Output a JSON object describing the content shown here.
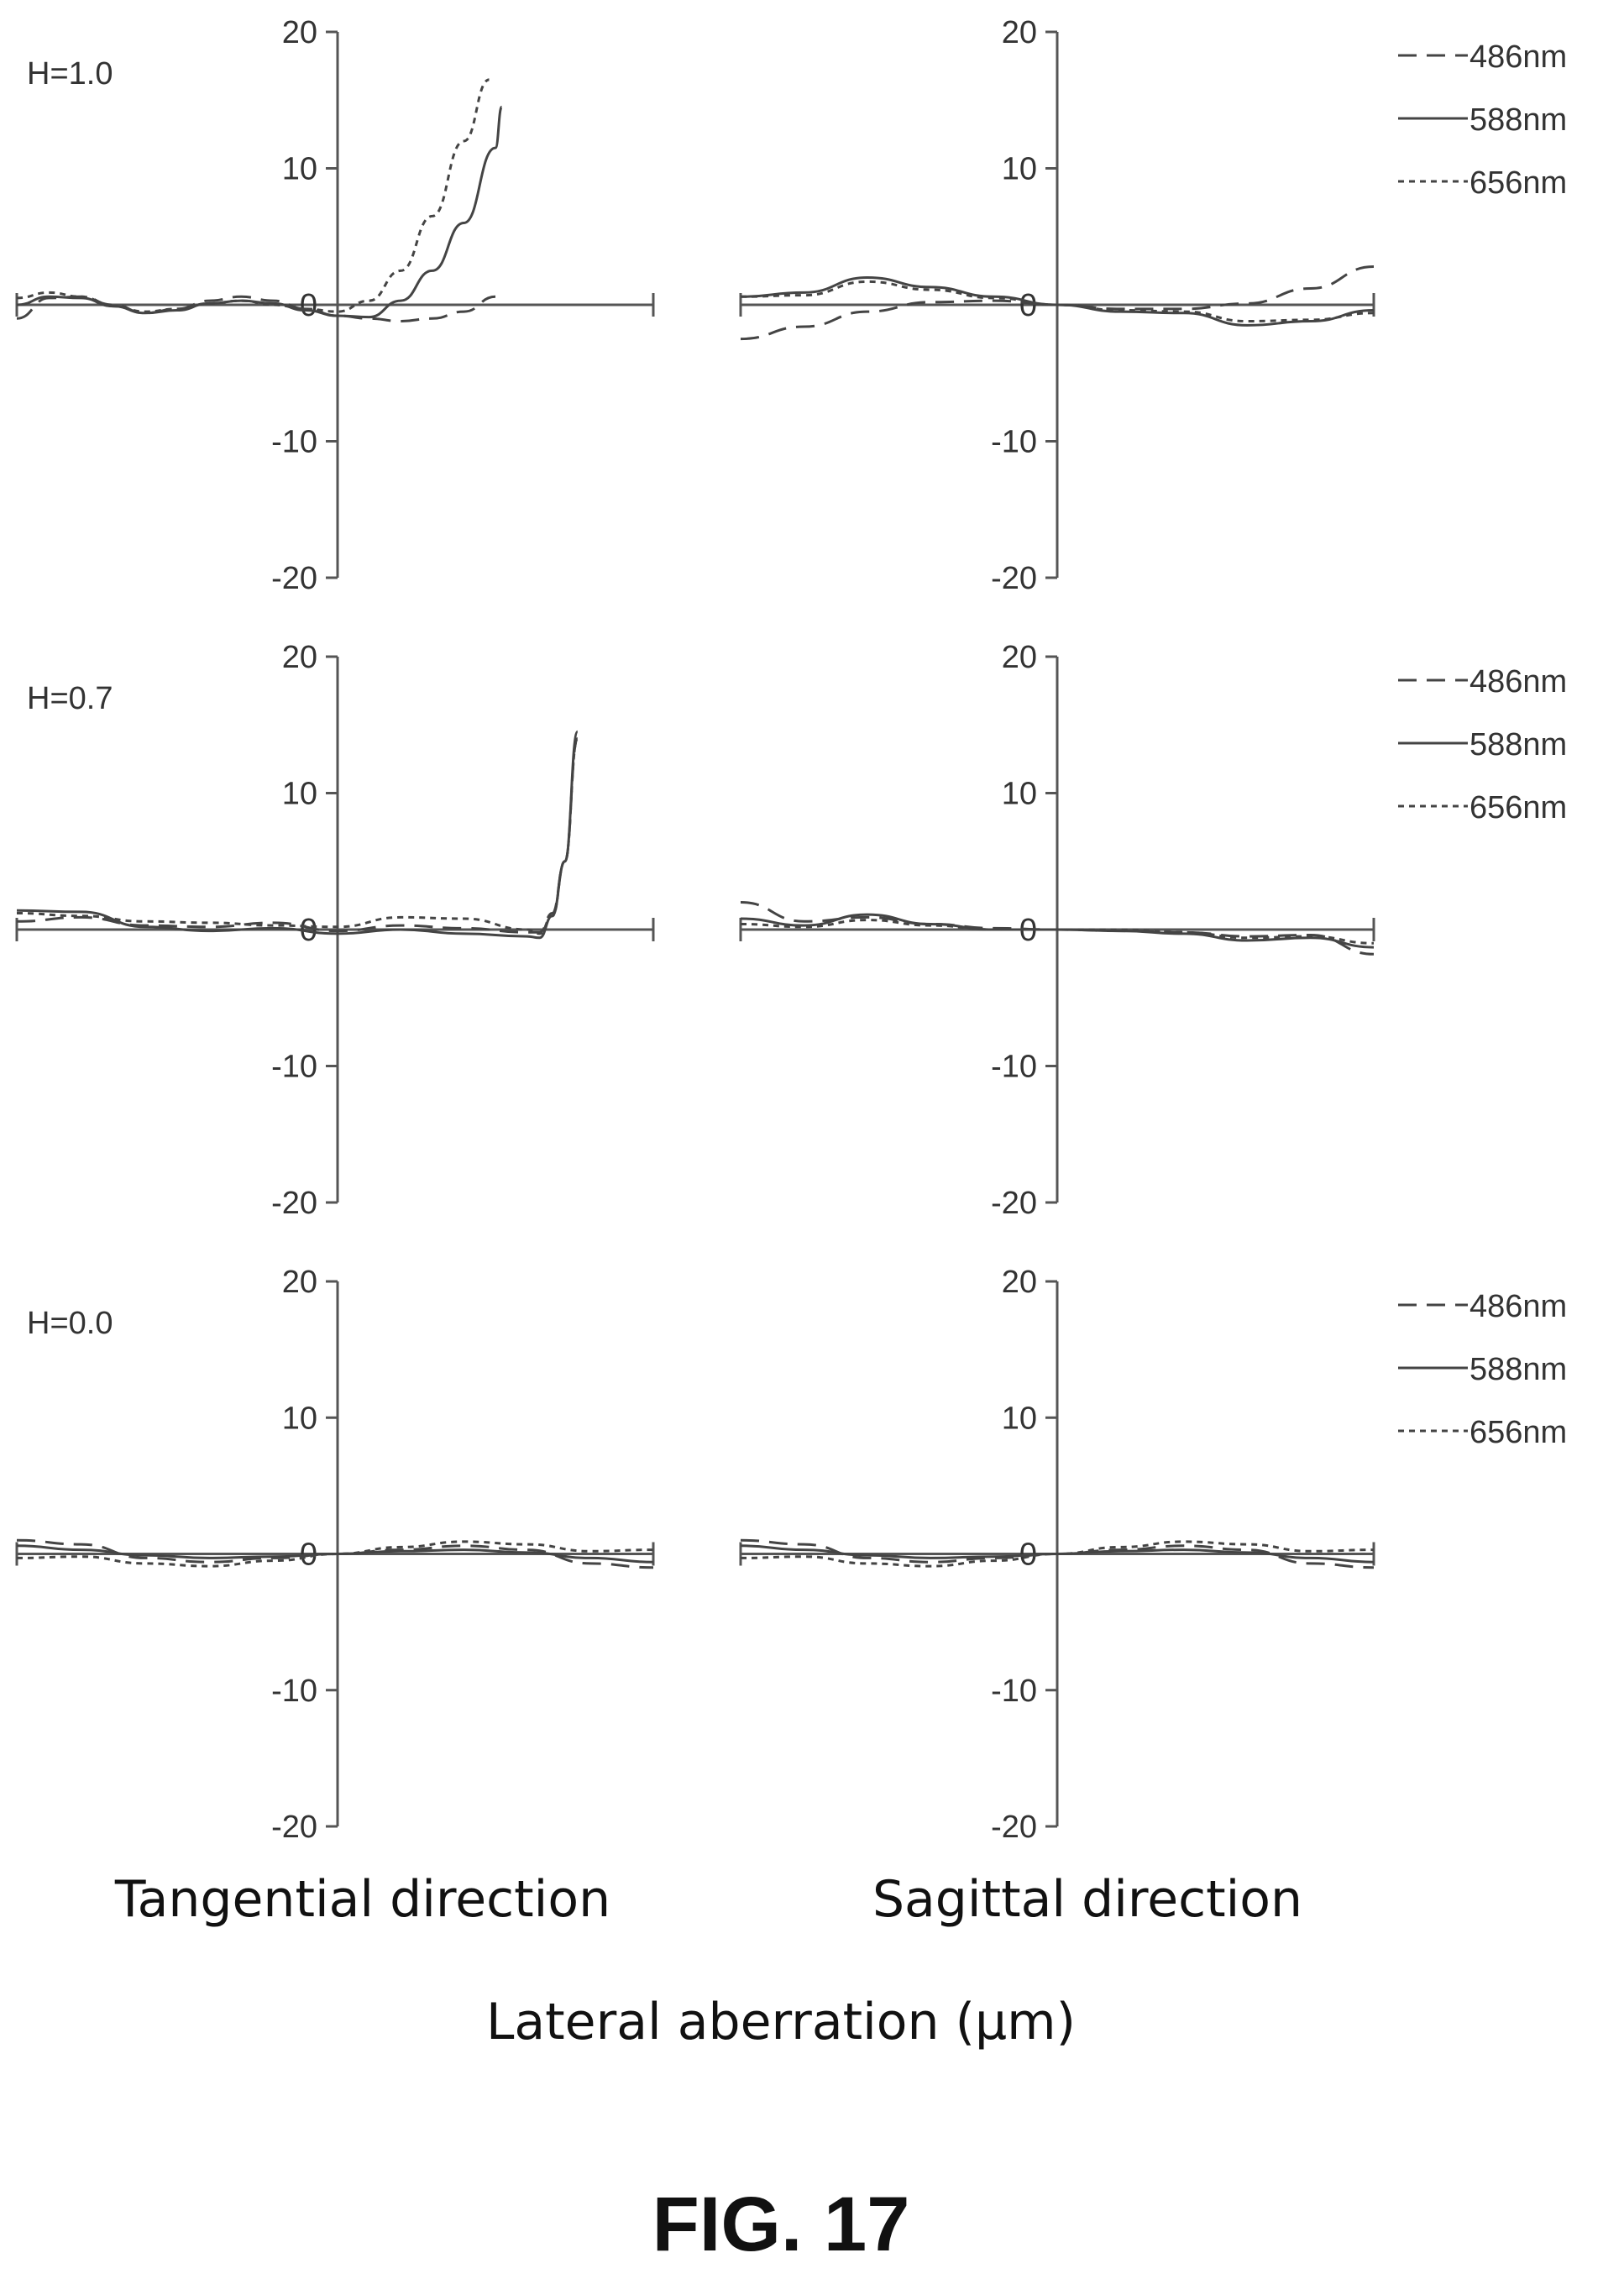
{
  "figure_title": "FIG. 17",
  "x_axis_label": "Lateral aberration (µm)",
  "column_labels": [
    "Tangential direction",
    "Sagittal direction"
  ],
  "legend": [
    {
      "label": "486nm",
      "style": "long-dash"
    },
    {
      "label": "588nm",
      "style": "solid"
    },
    {
      "label": "656nm",
      "style": "short-dash"
    }
  ],
  "colors": {
    "curve": "#444444",
    "axis": "#555555"
  },
  "chart_data": [
    {
      "type": "line",
      "panel": "H=1.0 tangential",
      "row_label": "H=1.0",
      "title": "",
      "xlim": [
        -1,
        1
      ],
      "ylim": [
        -20,
        20
      ],
      "yticks": [
        20,
        10,
        0,
        -10,
        -20
      ],
      "series": [
        {
          "name": "486nm",
          "x": [
            -1.0,
            -0.9,
            -0.8,
            -0.7,
            -0.6,
            -0.5,
            -0.4,
            -0.3,
            -0.2,
            -0.1,
            0.0,
            0.1,
            0.2,
            0.3,
            0.4,
            0.5
          ],
          "y": [
            -1.0,
            0.5,
            0.6,
            0.0,
            -0.6,
            -0.3,
            0.3,
            0.6,
            0.3,
            -0.3,
            -0.8,
            -1.0,
            -1.2,
            -1.0,
            -0.5,
            0.6
          ]
        },
        {
          "name": "588nm",
          "x": [
            -1.0,
            -0.9,
            -0.8,
            -0.7,
            -0.6,
            -0.5,
            -0.4,
            -0.3,
            -0.2,
            -0.1,
            0.0,
            0.1,
            0.2,
            0.3,
            0.4,
            0.5,
            0.52
          ],
          "y": [
            0.0,
            0.6,
            0.5,
            -0.1,
            -0.6,
            -0.4,
            0.1,
            0.3,
            0.1,
            -0.4,
            -0.8,
            -0.9,
            0.3,
            2.5,
            6.0,
            11.5,
            14.5
          ]
        },
        {
          "name": "656nm",
          "x": [
            -1.0,
            -0.9,
            -0.8,
            -0.7,
            -0.6,
            -0.5,
            -0.4,
            -0.3,
            -0.2,
            -0.1,
            0.0,
            0.1,
            0.2,
            0.3,
            0.4,
            0.48
          ],
          "y": [
            0.5,
            0.9,
            0.6,
            -0.1,
            -0.5,
            -0.3,
            0.1,
            0.3,
            0.0,
            -0.3,
            -0.5,
            0.3,
            2.5,
            6.5,
            12.0,
            16.5
          ]
        }
      ]
    },
    {
      "type": "line",
      "panel": "H=1.0 sagittal",
      "row_label": "",
      "title": "",
      "xlim": [
        -1,
        1
      ],
      "ylim": [
        -20,
        20
      ],
      "yticks": [
        20,
        10,
        0,
        -10,
        -20
      ],
      "series": [
        {
          "name": "486nm",
          "x": [
            -1.0,
            -0.8,
            -0.6,
            -0.4,
            -0.2,
            0.0,
            0.2,
            0.4,
            0.6,
            0.8,
            1.0
          ],
          "y": [
            -2.5,
            -1.6,
            -0.5,
            0.2,
            0.3,
            0.0,
            -0.3,
            -0.3,
            0.1,
            1.2,
            2.8
          ]
        },
        {
          "name": "588nm",
          "x": [
            -1.0,
            -0.8,
            -0.6,
            -0.4,
            -0.2,
            0.0,
            0.2,
            0.4,
            0.6,
            0.8,
            1.0
          ],
          "y": [
            0.6,
            0.9,
            2.0,
            1.3,
            0.6,
            0.0,
            -0.5,
            -0.6,
            -1.5,
            -1.2,
            -0.4
          ]
        },
        {
          "name": "656nm",
          "x": [
            -1.0,
            -0.8,
            -0.6,
            -0.4,
            -0.2,
            0.0,
            0.2,
            0.4,
            0.6,
            0.8,
            1.0
          ],
          "y": [
            0.6,
            0.7,
            1.7,
            1.1,
            0.5,
            0.0,
            -0.4,
            -0.5,
            -1.2,
            -1.1,
            -0.6
          ]
        }
      ]
    },
    {
      "type": "line",
      "panel": "H=0.7 tangential",
      "row_label": "H=0.7",
      "title": "",
      "xlim": [
        -1,
        1
      ],
      "ylim": [
        -20,
        20
      ],
      "yticks": [
        20,
        10,
        0,
        -10,
        -20
      ],
      "series": [
        {
          "name": "486nm",
          "x": [
            -1.0,
            -0.8,
            -0.6,
            -0.4,
            -0.2,
            0.0,
            0.2,
            0.4,
            0.6,
            0.64,
            0.68,
            0.72,
            0.76
          ],
          "y": [
            0.6,
            0.9,
            0.3,
            0.2,
            0.5,
            -0.1,
            0.3,
            0.1,
            -0.2,
            -0.2,
            1.2,
            5.0,
            14.0
          ]
        },
        {
          "name": "588nm",
          "x": [
            -1.0,
            -0.8,
            -0.6,
            -0.4,
            -0.2,
            0.0,
            0.2,
            0.4,
            0.6,
            0.64,
            0.68,
            0.72,
            0.76
          ],
          "y": [
            1.4,
            1.3,
            0.2,
            -0.1,
            0.1,
            -0.3,
            0.0,
            -0.3,
            -0.5,
            -0.6,
            1.0,
            5.0,
            14.5
          ]
        },
        {
          "name": "656nm",
          "x": [
            -1.0,
            -0.8,
            -0.6,
            -0.4,
            -0.2,
            0.0,
            0.2,
            0.4,
            0.6,
            0.64,
            0.68,
            0.72,
            0.76
          ],
          "y": [
            1.2,
            1.0,
            0.6,
            0.5,
            0.3,
            0.2,
            0.9,
            0.8,
            0.0,
            -0.3,
            1.0,
            5.0,
            14.0
          ]
        }
      ]
    },
    {
      "type": "line",
      "panel": "H=0.7 sagittal",
      "row_label": "",
      "title": "",
      "xlim": [
        -1,
        1
      ],
      "ylim": [
        -20,
        20
      ],
      "yticks": [
        20,
        10,
        0,
        -10,
        -20
      ],
      "series": [
        {
          "name": "486nm",
          "x": [
            -1.0,
            -0.8,
            -0.6,
            -0.4,
            -0.2,
            0.0,
            0.2,
            0.4,
            0.6,
            0.8,
            1.0
          ],
          "y": [
            2.0,
            0.6,
            0.9,
            0.4,
            0.1,
            0.0,
            -0.1,
            -0.2,
            -0.5,
            -0.4,
            -1.8
          ]
        },
        {
          "name": "588nm",
          "x": [
            -1.0,
            -0.8,
            -0.6,
            -0.4,
            -0.2,
            0.0,
            0.2,
            0.4,
            0.6,
            0.8,
            1.0
          ],
          "y": [
            0.8,
            0.3,
            1.1,
            0.4,
            0.0,
            0.0,
            -0.1,
            -0.3,
            -0.8,
            -0.6,
            -1.3
          ]
        },
        {
          "name": "656nm",
          "x": [
            -1.0,
            -0.8,
            -0.6,
            -0.4,
            -0.2,
            0.0,
            0.2,
            0.4,
            0.6,
            0.8,
            1.0
          ],
          "y": [
            0.4,
            0.2,
            0.7,
            0.3,
            0.0,
            0.0,
            0.0,
            -0.2,
            -0.6,
            -0.5,
            -1.0
          ]
        }
      ]
    },
    {
      "type": "line",
      "panel": "H=0.0 tangential",
      "row_label": "H=0.0",
      "title": "",
      "xlim": [
        -1,
        1
      ],
      "ylim": [
        -20,
        20
      ],
      "yticks": [
        20,
        10,
        0,
        -10,
        -20
      ],
      "series": [
        {
          "name": "486nm",
          "x": [
            -1.0,
            -0.8,
            -0.6,
            -0.4,
            -0.2,
            0.0,
            0.2,
            0.4,
            0.6,
            0.8,
            1.0
          ],
          "y": [
            1.0,
            0.7,
            -0.3,
            -0.6,
            -0.3,
            0.0,
            0.3,
            0.6,
            0.3,
            -0.7,
            -1.0
          ]
        },
        {
          "name": "588nm",
          "x": [
            -1.0,
            -0.8,
            -0.6,
            -0.4,
            -0.2,
            0.0,
            0.2,
            0.4,
            0.6,
            0.8,
            1.0
          ],
          "y": [
            0.6,
            0.3,
            -0.1,
            -0.3,
            -0.2,
            0.0,
            0.2,
            0.3,
            0.1,
            -0.3,
            -0.6
          ]
        },
        {
          "name": "656nm",
          "x": [
            -1.0,
            -0.8,
            -0.6,
            -0.4,
            -0.2,
            0.0,
            0.2,
            0.4,
            0.6,
            0.8,
            1.0
          ],
          "y": [
            -0.3,
            -0.2,
            -0.7,
            -0.9,
            -0.5,
            0.0,
            0.5,
            0.9,
            0.7,
            0.2,
            0.3
          ]
        }
      ]
    },
    {
      "type": "line",
      "panel": "H=0.0 sagittal",
      "row_label": "",
      "title": "",
      "xlim": [
        -1,
        1
      ],
      "ylim": [
        -20,
        20
      ],
      "yticks": [
        20,
        10,
        0,
        -10,
        -20
      ],
      "series": [
        {
          "name": "486nm",
          "x": [
            -1.0,
            -0.8,
            -0.6,
            -0.4,
            -0.2,
            0.0,
            0.2,
            0.4,
            0.6,
            0.8,
            1.0
          ],
          "y": [
            1.0,
            0.7,
            -0.3,
            -0.6,
            -0.3,
            0.0,
            0.3,
            0.6,
            0.3,
            -0.7,
            -1.0
          ]
        },
        {
          "name": "588nm",
          "x": [
            -1.0,
            -0.8,
            -0.6,
            -0.4,
            -0.2,
            0.0,
            0.2,
            0.4,
            0.6,
            0.8,
            1.0
          ],
          "y": [
            0.6,
            0.3,
            -0.1,
            -0.3,
            -0.2,
            0.0,
            0.2,
            0.3,
            0.1,
            -0.3,
            -0.6
          ]
        },
        {
          "name": "656nm",
          "x": [
            -1.0,
            -0.8,
            -0.6,
            -0.4,
            -0.2,
            0.0,
            0.2,
            0.4,
            0.6,
            0.8,
            1.0
          ],
          "y": [
            -0.3,
            -0.2,
            -0.7,
            -0.9,
            -0.5,
            0.0,
            0.5,
            0.9,
            0.7,
            0.2,
            0.3
          ]
        }
      ]
    }
  ]
}
